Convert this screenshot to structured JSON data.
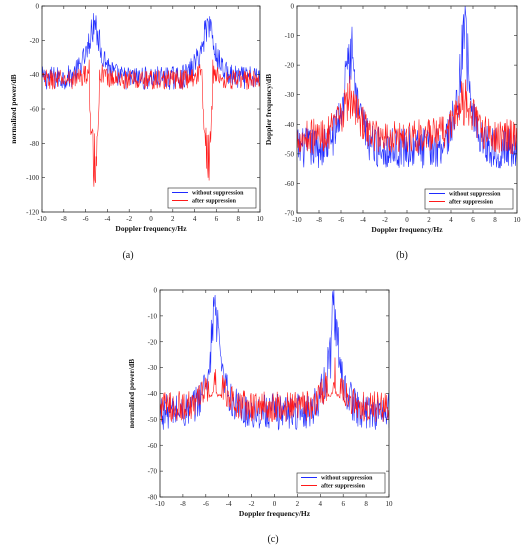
{
  "colors": {
    "without": "#1f2bff",
    "after": "#ff1a1a",
    "axis": "#222222"
  },
  "chart_data": [
    {
      "id": "a",
      "type": "line",
      "caption": "(a)",
      "xlabel": "Doppler frequency/Hz",
      "ylabel": "normalized power/dB",
      "xlim": [
        -10,
        10
      ],
      "ylim": [
        -120,
        0
      ],
      "xticks": [
        "-10",
        "-8",
        "-6",
        "-4",
        "-2",
        "0",
        "2",
        "4",
        "6",
        "8",
        "10"
      ],
      "yticks": [
        "0",
        "-20",
        "-40",
        "-60",
        "-80",
        "-100",
        "-120"
      ],
      "grid": false,
      "legend_position": "bottom-right",
      "series": [
        {
          "name": "without suppression",
          "color": "blue",
          "peaks": [
            -5.2,
            5.2
          ],
          "peak_level": 0,
          "shoulder_level": -22,
          "floor": -42,
          "noise": 7,
          "notch": false
        },
        {
          "name": "after suppression",
          "color": "red",
          "peaks": [
            -5.2,
            5.2
          ],
          "peak_level": -36,
          "shoulder_level": -38,
          "floor": -43,
          "noise": 6,
          "notch": true,
          "notch_depth": [
            -95,
            -105
          ]
        }
      ]
    },
    {
      "id": "b",
      "type": "line",
      "caption": "(b)",
      "xlabel": "Doppler frequency/Hz",
      "ylabel": "Doppler frequency/dB",
      "xlim": [
        -10,
        10
      ],
      "ylim": [
        -70,
        0
      ],
      "xticks": [
        "-10",
        "-8",
        "-6",
        "-4",
        "-2",
        "0",
        "2",
        "4",
        "6",
        "8",
        "10"
      ],
      "yticks": [
        "0",
        "-10",
        "-20",
        "-30",
        "-40",
        "-50",
        "-60",
        "-70"
      ],
      "grid": false,
      "legend_position": "bottom-right",
      "series": [
        {
          "name": "without suppression",
          "color": "blue",
          "peaks": [
            -5.2,
            5.2
          ],
          "peak_level": 0,
          "shoulder_level": -30,
          "floor": -48,
          "noise": 7,
          "notch": false
        },
        {
          "name": "after suppression",
          "color": "red",
          "peaks": [
            -5.2,
            5.2
          ],
          "peak_level": -30,
          "shoulder_level": -34,
          "floor": -44,
          "noise": 6,
          "notch": false
        }
      ]
    },
    {
      "id": "c",
      "type": "line",
      "caption": "(c)",
      "xlabel": "Doppler frequency/Hz",
      "ylabel": "normalized power/dB",
      "xlim": [
        -10,
        10
      ],
      "ylim": [
        -80,
        0
      ],
      "xticks": [
        "-10",
        "-8",
        "-6",
        "-4",
        "-2",
        "0",
        "2",
        "4",
        "6",
        "8",
        "10"
      ],
      "yticks": [
        "0",
        "-10",
        "-20",
        "-30",
        "-40",
        "-50",
        "-60",
        "-70",
        "-80"
      ],
      "grid": false,
      "legend_position": "bottom-right",
      "series": [
        {
          "name": "without suppression",
          "color": "blue",
          "peaks": [
            -5.2,
            5.2
          ],
          "peak_level": 0,
          "shoulder_level": -30,
          "floor": -47,
          "noise": 7,
          "notch": false
        },
        {
          "name": "after suppression",
          "color": "red",
          "peaks": [
            -5.2,
            5.2
          ],
          "peak_level": -32,
          "shoulder_level": -35,
          "floor": -45,
          "noise": 6,
          "notch": false,
          "dip_level": -41
        }
      ]
    }
  ]
}
